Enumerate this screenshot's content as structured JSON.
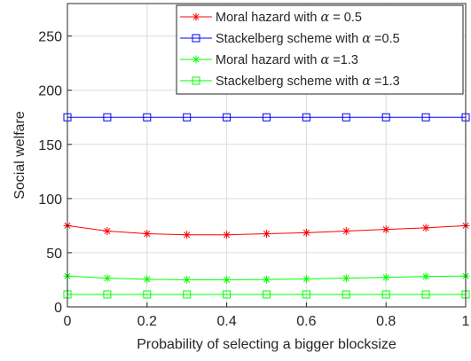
{
  "chart_data": {
    "type": "line",
    "xlabel": "Probability of selecting a bigger blocksize",
    "ylabel": "Social welfare",
    "xlim": [
      0,
      1
    ],
    "ylim": [
      0,
      280
    ],
    "xticks": [
      0,
      0.2,
      0.4,
      0.6,
      0.8,
      1
    ],
    "xtick_labels": [
      "0",
      "0.2",
      "0.4",
      "0.6",
      "0.8",
      "1"
    ],
    "yticks": [
      0,
      50,
      100,
      150,
      200,
      250
    ],
    "ytick_labels": [
      "0",
      "50",
      "100",
      "150",
      "200",
      "250"
    ],
    "grid": true,
    "legend_position": "top-right",
    "x": [
      0,
      0.1,
      0.2,
      0.3,
      0.4,
      0.5,
      0.6,
      0.7,
      0.8,
      0.9,
      1.0
    ],
    "series": [
      {
        "name_prefix": "Moral hazard with",
        "name_alpha": "α",
        "name_suffix": " = 0.5",
        "color": "#ff0000",
        "marker": "asterisk",
        "values": [
          75,
          70,
          67.5,
          66.5,
          66.5,
          67.5,
          68.5,
          70,
          71.5,
          73,
          75
        ]
      },
      {
        "name_prefix": "Stackelberg scheme with ",
        "name_alpha": "α",
        "name_suffix": " =0.5",
        "color": "#0000ff",
        "marker": "square",
        "values": [
          175,
          175,
          175,
          175,
          175,
          175,
          175,
          175,
          175,
          175,
          175
        ]
      },
      {
        "name_prefix": "Moral hazard with",
        "name_alpha": "α",
        "name_suffix": " =1.3",
        "color": "#00ff00",
        "marker": "asterisk",
        "values": [
          28.5,
          26.5,
          25.5,
          25,
          25,
          25.3,
          25.8,
          26.5,
          27.2,
          28,
          28.5
        ]
      },
      {
        "name_prefix": "Stackelberg scheme with ",
        "name_alpha": "α",
        "name_suffix": " =1.3",
        "color": "#00ff00",
        "marker": "square",
        "values": [
          11.5,
          11.5,
          11.5,
          11.5,
          11.5,
          11.5,
          11.5,
          11.5,
          11.5,
          11.5,
          11.5
        ]
      }
    ]
  }
}
